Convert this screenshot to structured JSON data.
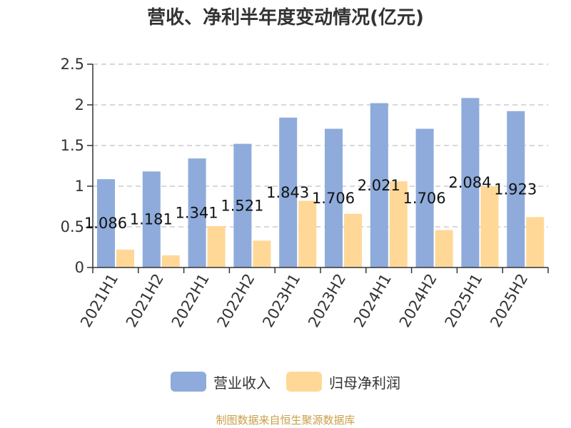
{
  "title": "营收、净利半年度变动情况(亿元)",
  "source": "制图数据来自恒生聚源数据库",
  "colors": {
    "revenue": "#8eabdb",
    "profit": "#ffd898",
    "grid": "#cccccc",
    "axis": "#333333",
    "source_text": "#c8a04a"
  },
  "chart_data": {
    "type": "bar",
    "categories": [
      "2021H1",
      "2021H2",
      "2022H1",
      "2022H2",
      "2023H1",
      "2023H2",
      "2024H1",
      "2024H2",
      "2025H1",
      "2025H2"
    ],
    "series": [
      {
        "name": "营业收入",
        "values": [
          1.086,
          1.181,
          1.341,
          1.521,
          1.843,
          1.706,
          2.021,
          1.706,
          2.084,
          1.923
        ]
      },
      {
        "name": "归母净利润",
        "values": [
          0.22,
          0.15,
          0.51,
          0.33,
          0.82,
          0.66,
          1.06,
          0.46,
          1.0,
          0.62
        ]
      }
    ],
    "data_labels": [
      "1.086",
      "1.181",
      "1.341",
      "1.521",
      "1.843",
      "1.706",
      "2.021",
      "1.706",
      "2.084",
      "1.923"
    ],
    "yticks": [
      "0",
      "0.5",
      "1",
      "1.5",
      "2",
      "2.5"
    ],
    "ylim": [
      0,
      2.5
    ],
    "grid": true,
    "legend_position": "bottom-center"
  }
}
